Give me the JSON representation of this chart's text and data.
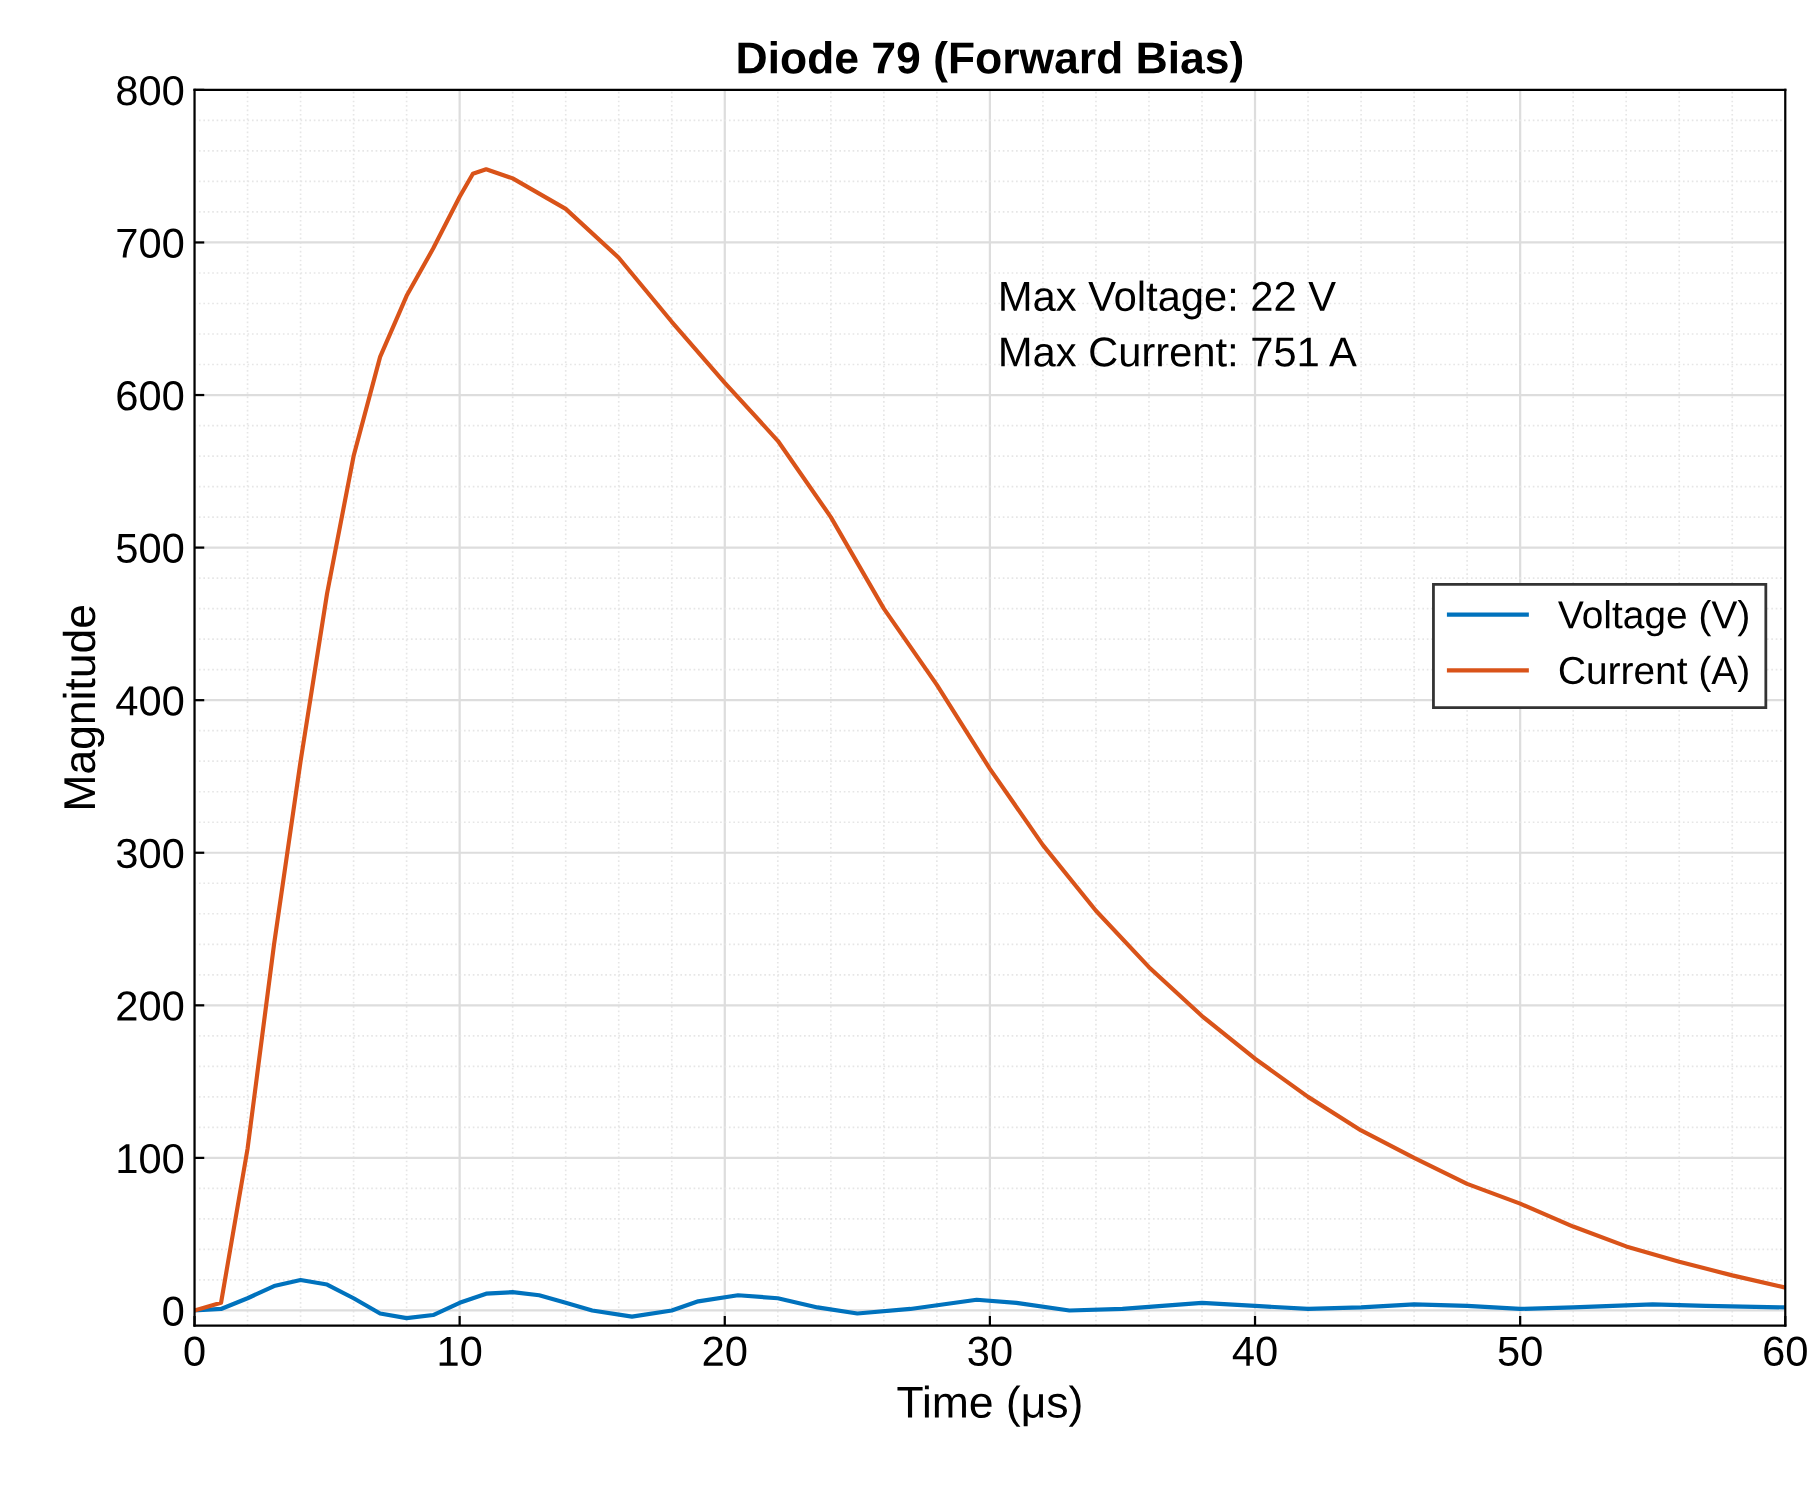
{
  "chart_data": {
    "type": "line",
    "title": "Diode 79 (Forward Bias)",
    "xlabel": "Time (μs)",
    "ylabel": "Magnitude",
    "xlim": [
      0,
      60
    ],
    "ylim": [
      -10,
      800
    ],
    "xticks": [
      0,
      10,
      20,
      30,
      40,
      50,
      60
    ],
    "yticks": [
      0,
      100,
      200,
      300,
      400,
      500,
      600,
      700,
      800
    ],
    "grid": true,
    "legend": "right",
    "annotations": [
      "Max Voltage: 22 V",
      "Max Current: 751 A"
    ],
    "series": [
      {
        "name": "Voltage (V)",
        "color": "#0072bd",
        "x": [
          0,
          1,
          2,
          3,
          4,
          5,
          6,
          7,
          8,
          9,
          10,
          11,
          12,
          13,
          14,
          15,
          16.5,
          18,
          19,
          20.5,
          22,
          23.5,
          25,
          27,
          29.5,
          31,
          33,
          35,
          38,
          40,
          42,
          44,
          46,
          48,
          50,
          52,
          55,
          57,
          60
        ],
        "values": [
          0,
          1,
          8,
          16,
          20,
          17,
          8,
          -2,
          -5,
          -3,
          5,
          11,
          12,
          10,
          5,
          0,
          -4,
          0,
          6,
          10,
          8,
          2,
          -2,
          1,
          7,
          5,
          0,
          1,
          5,
          3,
          1,
          2,
          4,
          3,
          1,
          2,
          4,
          3,
          2
        ]
      },
      {
        "name": "Current (A)",
        "color": "#d95319",
        "x": [
          0,
          1,
          2,
          3,
          3.5,
          4,
          5,
          6,
          7,
          8,
          9,
          10,
          10.5,
          11,
          12,
          14,
          16,
          18,
          20,
          22,
          24,
          26,
          28,
          30,
          32,
          34,
          36,
          38,
          40,
          42,
          44,
          46,
          48,
          50,
          52,
          54,
          56,
          58,
          60
        ],
        "values": [
          0,
          5,
          106,
          240,
          300,
          360,
          470,
          560,
          625,
          665,
          696,
          730,
          745,
          748,
          742,
          722,
          690,
          648,
          608,
          570,
          520,
          460,
          410,
          355,
          305,
          262,
          225,
          193,
          165,
          140,
          118,
          100,
          83,
          70,
          55,
          42,
          32,
          23,
          15
        ]
      }
    ]
  }
}
